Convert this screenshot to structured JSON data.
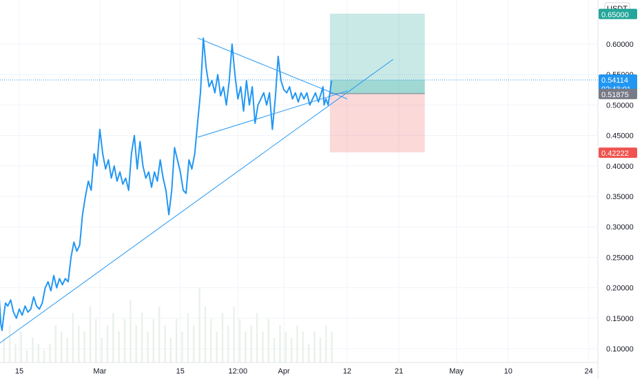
{
  "chart_data": {
    "type": "line",
    "currency_label": "USDT",
    "y_axis": {
      "min": 0.08,
      "max": 0.665,
      "ticks": [
        "0.60000",
        "0.55000",
        "0.50000",
        "0.45000",
        "0.40000",
        "0.35000",
        "0.30000",
        "0.25000",
        "0.20000",
        "0.15000",
        "0.10000"
      ],
      "tick_values": [
        0.6,
        0.55,
        0.5,
        0.45,
        0.4,
        0.35,
        0.3,
        0.25,
        0.2,
        0.15,
        0.1
      ]
    },
    "x_axis": {
      "tick_labels": [
        "15",
        "Mar",
        "15",
        "12:00",
        "Apr",
        "12",
        "21",
        "May",
        "10",
        "24"
      ],
      "tick_days": [
        15,
        29,
        43,
        53,
        61,
        72,
        81,
        91,
        100,
        114
      ]
    },
    "price_series": {
      "name": "",
      "color": "#2196f3",
      "points": [
        [
          0,
          0.205
        ],
        [
          0.5,
          0.215
        ],
        [
          1,
          0.225
        ],
        [
          1.5,
          0.21
        ],
        [
          2,
          0.23
        ],
        [
          2.5,
          0.22
        ],
        [
          3,
          0.235
        ],
        [
          3.5,
          0.22
        ],
        [
          4,
          0.24
        ],
        [
          4.5,
          0.235
        ],
        [
          5,
          0.25
        ],
        [
          5.5,
          0.235
        ],
        [
          6,
          0.245
        ],
        [
          6.5,
          0.235
        ],
        [
          7,
          0.24
        ],
        [
          7.5,
          0.225
        ],
        [
          8,
          0.23
        ],
        [
          8.5,
          0.215
        ],
        [
          9,
          0.22
        ],
        [
          9.5,
          0.2
        ],
        [
          10,
          0.19
        ],
        [
          10.5,
          0.175
        ],
        [
          11,
          0.165
        ],
        [
          11.5,
          0.185
        ],
        [
          11.8,
          0.14
        ],
        [
          12,
          0.13
        ],
        [
          12.3,
          0.155
        ],
        [
          12.6,
          0.175
        ],
        [
          13,
          0.17
        ],
        [
          13.5,
          0.18
        ],
        [
          14,
          0.16
        ],
        [
          14.5,
          0.15
        ],
        [
          15,
          0.165
        ],
        [
          15.5,
          0.155
        ],
        [
          16,
          0.17
        ],
        [
          16.5,
          0.16
        ],
        [
          17,
          0.165
        ],
        [
          17.5,
          0.185
        ],
        [
          18,
          0.17
        ],
        [
          18.5,
          0.165
        ],
        [
          19,
          0.175
        ],
        [
          19.5,
          0.2
        ],
        [
          20,
          0.21
        ],
        [
          20.5,
          0.195
        ],
        [
          21,
          0.22
        ],
        [
          21.5,
          0.2
        ],
        [
          22,
          0.215
        ],
        [
          22.5,
          0.205
        ],
        [
          23,
          0.215
        ],
        [
          23.5,
          0.21
        ],
        [
          24,
          0.25
        ],
        [
          24.5,
          0.275
        ],
        [
          25,
          0.26
        ],
        [
          25.5,
          0.27
        ],
        [
          26,
          0.32
        ],
        [
          26.5,
          0.35
        ],
        [
          27,
          0.375
        ],
        [
          27.5,
          0.36
        ],
        [
          28,
          0.42
        ],
        [
          28.5,
          0.4
        ],
        [
          29,
          0.46
        ],
        [
          29.5,
          0.42
        ],
        [
          30,
          0.395
        ],
        [
          30.5,
          0.41
        ],
        [
          31,
          0.38
        ],
        [
          31.5,
          0.4
        ],
        [
          32,
          0.375
        ],
        [
          32.5,
          0.39
        ],
        [
          33,
          0.37
        ],
        [
          33.5,
          0.38
        ],
        [
          34,
          0.36
        ],
        [
          34.5,
          0.42
        ],
        [
          35,
          0.45
        ],
        [
          35.5,
          0.395
        ],
        [
          36,
          0.44
        ],
        [
          36.5,
          0.4
        ],
        [
          37,
          0.38
        ],
        [
          37.5,
          0.39
        ],
        [
          38,
          0.365
        ],
        [
          38.5,
          0.39
        ],
        [
          39,
          0.375
        ],
        [
          39.5,
          0.41
        ],
        [
          40,
          0.38
        ],
        [
          40.5,
          0.36
        ],
        [
          41,
          0.32
        ],
        [
          41.5,
          0.36
        ],
        [
          42,
          0.43
        ],
        [
          42.5,
          0.41
        ],
        [
          43,
          0.39
        ],
        [
          43.5,
          0.36
        ],
        [
          44,
          0.355
        ],
        [
          44.5,
          0.41
        ],
        [
          45,
          0.395
        ],
        [
          45.5,
          0.42
        ],
        [
          46,
          0.47
        ],
        [
          46.5,
          0.52
        ],
        [
          47,
          0.61
        ],
        [
          47.5,
          0.56
        ],
        [
          48,
          0.53
        ],
        [
          48.5,
          0.54
        ],
        [
          49,
          0.52
        ],
        [
          49.5,
          0.55
        ],
        [
          50,
          0.515
        ],
        [
          50.5,
          0.53
        ],
        [
          51,
          0.5
        ],
        [
          51.5,
          0.54
        ],
        [
          52,
          0.6
        ],
        [
          52.5,
          0.55
        ],
        [
          53,
          0.51
        ],
        [
          53.5,
          0.53
        ],
        [
          54,
          0.49
        ],
        [
          54.5,
          0.54
        ],
        [
          55,
          0.5
        ],
        [
          55.5,
          0.53
        ],
        [
          56,
          0.47
        ],
        [
          56.5,
          0.5
        ],
        [
          57,
          0.51
        ],
        [
          57.5,
          0.52
        ],
        [
          58,
          0.5
        ],
        [
          58.5,
          0.52
        ],
        [
          59,
          0.46
        ],
        [
          59.5,
          0.51
        ],
        [
          60,
          0.58
        ],
        [
          60.5,
          0.54
        ],
        [
          61,
          0.525
        ],
        [
          61.5,
          0.52
        ],
        [
          62,
          0.53
        ],
        [
          62.5,
          0.51
        ],
        [
          63,
          0.52
        ],
        [
          63.5,
          0.505
        ],
        [
          64,
          0.52
        ],
        [
          64.5,
          0.51
        ],
        [
          65,
          0.52
        ],
        [
          65.5,
          0.5
        ],
        [
          66,
          0.51
        ],
        [
          66.5,
          0.52
        ],
        [
          67,
          0.505
        ],
        [
          67.5,
          0.52
        ],
        [
          67.8,
          0.53
        ],
        [
          68,
          0.5
        ],
        [
          68.3,
          0.51
        ],
        [
          68.7,
          0.5
        ],
        [
          69,
          0.52
        ],
        [
          69.3,
          0.54
        ]
      ]
    },
    "trendlines": [
      {
        "name": "support-trendline",
        "from": [
          11,
          0.105
        ],
        "to": [
          80,
          0.575
        ],
        "color": "#2196f3"
      },
      {
        "name": "triangle-upper",
        "from": [
          46,
          0.61
        ],
        "to": [
          72,
          0.51
        ],
        "color": "#2196f3"
      },
      {
        "name": "triangle-lower",
        "from": [
          46,
          0.447
        ],
        "to": [
          72,
          0.523
        ],
        "color": "#2196f3"
      }
    ],
    "position": {
      "start_day": 69,
      "end_day": 85.5,
      "entry": 0.51875,
      "target": 0.65,
      "stop": 0.42222,
      "profit_color": "#26a69a",
      "loss_color": "#ef5350"
    },
    "current_price": {
      "value": 0.54114,
      "label": "0.54114",
      "countdown": "02:43:01",
      "color": "#2196f3"
    },
    "labels": {
      "target": "0.65000",
      "entry": "0.51875",
      "stop": "0.42222"
    },
    "volume": [
      0.02,
      0.03,
      0.015,
      0.025,
      0.03,
      0.02,
      0.04,
      0.03,
      0.02,
      0.05,
      0.03,
      0.02,
      0.04,
      0.06,
      0.03,
      0.05,
      0.02,
      0.04,
      0.03,
      0.02,
      0.03,
      0.06,
      0.05,
      0.04,
      0.08,
      0.06,
      0.05,
      0.09,
      0.07,
      0.04,
      0.06,
      0.08,
      0.05,
      0.07,
      0.1,
      0.06,
      0.08,
      0.05,
      0.07,
      0.09,
      0.06,
      0.04,
      0.07,
      0.05,
      0.08,
      0.06,
      0.12,
      0.09,
      0.07,
      0.05,
      0.08,
      0.06,
      0.09,
      0.07,
      0.05,
      0.06,
      0.08,
      0.05,
      0.07,
      0.04,
      0.06,
      0.05,
      0.04,
      0.06,
      0.05,
      0.03,
      0.05,
      0.04,
      0.06,
      0.05
    ],
    "grid": true
  }
}
